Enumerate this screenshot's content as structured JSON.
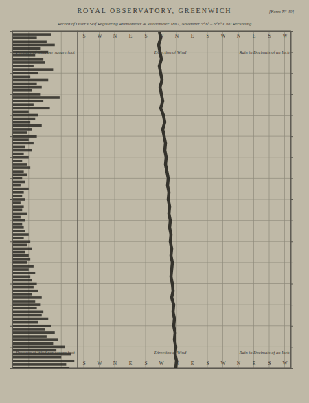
{
  "chart_data": [
    {
      "type": "bar",
      "orientation": "horizontal",
      "title": "ROYAL OBSERVATORY, GREENWICH",
      "subtitle": "Record of Osler's Self Registering Anemometer & Pluviometer 1897, November 5ᵈ 6ʰ – 6ᵈ 6ʰ Civil Reckoning",
      "annotations": [
        "[Form N° 49]"
      ],
      "xlabel": "Pressure of Wind per square foot",
      "y": [
        6,
        6.25,
        6.5,
        6.75,
        7,
        7.25,
        7.5,
        7.75,
        8,
        8.25,
        8.5,
        8.75,
        9,
        9.25,
        9.5,
        9.75,
        10,
        10.25,
        10.5,
        10.75,
        11,
        11.25,
        11.5,
        11.75,
        12,
        12.25,
        12.5,
        12.75,
        13,
        13.25,
        13.5,
        13.75,
        14,
        14.25,
        14.5,
        14.75,
        15,
        15.25,
        15.5,
        15.75,
        16,
        16.25,
        16.5,
        16.75,
        17,
        17.25,
        17.5,
        17.75,
        18,
        18.25,
        18.5,
        18.75,
        19,
        19.25,
        19.5,
        19.75,
        20,
        20.25,
        20.5,
        20.75,
        21,
        21.25,
        21.5,
        21.75,
        22,
        22.25,
        22.5,
        22.75,
        23,
        23.25,
        23.5,
        23.75,
        24,
        24.25,
        24.5,
        24.75,
        25,
        25.25,
        25.5,
        25.75,
        26,
        26.25,
        26.5,
        26.75,
        27,
        27.25,
        27.5,
        27.75,
        28,
        28.25,
        28.5,
        28.75,
        29,
        29.25,
        29.5,
        29.75,
        30
      ],
      "values": [
        1.8,
        2.4,
        1.5,
        2.1,
        2.6,
        1.7,
        2.2,
        1.4,
        1.9,
        2.0,
        1.3,
        2.5,
        1.6,
        1.1,
        2.2,
        1.5,
        1.8,
        1.2,
        1.7,
        2.9,
        1.9,
        1.3,
        2.3,
        1.0,
        1.6,
        1.4,
        1.1,
        1.8,
        1.2,
        0.9,
        1.5,
        1.0,
        1.3,
        0.8,
        1.2,
        0.7,
        1.0,
        0.6,
        0.9,
        1.1,
        0.7,
        0.9,
        0.6,
        0.8,
        0.5,
        1.0,
        0.7,
        0.6,
        0.8,
        0.5,
        0.7,
        0.6,
        0.9,
        0.5,
        0.8,
        0.6,
        0.7,
        0.8,
        1.0,
        0.7,
        1.1,
        0.9,
        1.2,
        0.8,
        1.0,
        1.1,
        0.9,
        1.3,
        1.0,
        1.4,
        1.1,
        1.2,
        1.5,
        1.3,
        1.6,
        1.2,
        1.8,
        1.4,
        1.7,
        1.5,
        1.9,
        1.8,
        2.2,
        1.6,
        2.4,
        2.0,
        2.6,
        2.1,
        2.8,
        2.5,
        3.2,
        2.7,
        3.6,
        3.0,
        3.8,
        3.3,
        3.5
      ],
      "color": "#2b2a26",
      "xlim": [
        0,
        4
      ],
      "xticks": [
        0,
        1,
        2,
        3,
        4
      ],
      "ylim": [
        6,
        30
      ],
      "yticks": [
        6,
        7.5,
        9,
        10.5,
        12,
        13.5,
        15,
        16.5,
        18,
        19.5,
        21,
        22.5,
        24,
        25.5,
        27,
        28.5,
        30
      ],
      "grid": true,
      "tick_labels": false
    },
    {
      "type": "line",
      "orientation": "horizontal",
      "xlabel": "Direction of Wind",
      "annotations": [
        "Rain in Decimals of an Inch"
      ],
      "y": [
        6,
        6.5,
        7,
        7.5,
        8,
        8.5,
        9,
        9.5,
        10,
        10.5,
        11,
        11.5,
        12,
        12.5,
        13,
        13.5,
        14,
        14.5,
        15,
        15.5,
        16,
        16.5,
        17,
        17.5,
        18,
        18.5,
        19,
        19.5,
        20,
        20.5,
        21,
        21.5,
        22,
        22.5,
        23,
        23.5,
        24,
        24.5,
        25,
        25.5,
        26,
        26.5,
        27,
        27.5,
        28,
        28.5,
        29,
        29.5,
        30
      ],
      "values": [
        620,
        628,
        616,
        624,
        632,
        620,
        628,
        636,
        624,
        632,
        640,
        628,
        644,
        652,
        640,
        648,
        656,
        652,
        660,
        656,
        664,
        672,
        668,
        676,
        672,
        680,
        676,
        684,
        680,
        688,
        684,
        692,
        688,
        696,
        692,
        688,
        696,
        700,
        692,
        704,
        700,
        708,
        704,
        712,
        708,
        716,
        712,
        720,
        716
      ],
      "color": "#26251f",
      "xlim": [
        144,
        1386
      ],
      "xticks": [
        {
          "value": 180,
          "label": "S"
        },
        {
          "value": 270,
          "label": "W"
        },
        {
          "value": 360,
          "label": "N"
        },
        {
          "value": 450,
          "label": "E"
        },
        {
          "value": 540,
          "label": "S"
        },
        {
          "value": 630,
          "label": "W"
        },
        {
          "value": 720,
          "label": "N"
        },
        {
          "value": 810,
          "label": "E"
        },
        {
          "value": 900,
          "label": "S"
        },
        {
          "value": 990,
          "label": "W"
        },
        {
          "value": 1080,
          "label": "N"
        },
        {
          "value": 1170,
          "label": "E"
        },
        {
          "value": 1260,
          "label": "S"
        },
        {
          "value": 1350,
          "label": "W"
        }
      ],
      "ylim": [
        6,
        30
      ],
      "yticks": [
        6,
        7.5,
        9,
        10.5,
        12,
        13.5,
        15,
        16.5,
        18,
        19.5,
        21,
        22.5,
        24,
        25.5,
        27,
        28.5,
        30
      ],
      "grid": true,
      "tick_labels": "x"
    }
  ]
}
